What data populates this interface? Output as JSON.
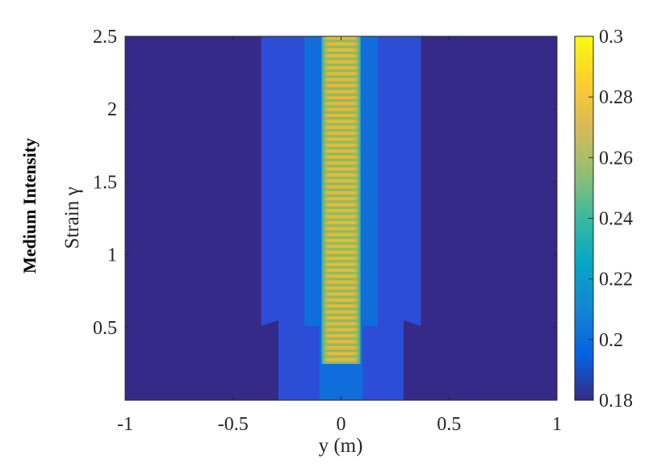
{
  "row_label": "Medium Intensity",
  "chart_data": {
    "type": "heatmap",
    "xlabel": "y (m)",
    "ylabel": "Strain γ",
    "xlim": [
      -1,
      1
    ],
    "ylim": [
      0,
      2.5
    ],
    "x_ticks": [
      "-1",
      "-0.5",
      "0",
      "0.5",
      "1"
    ],
    "y_ticks": [
      "0.5",
      "1",
      "1.5",
      "2",
      "2.5"
    ],
    "colorbar": {
      "range": [
        0.18,
        0.3
      ],
      "ticks": [
        "0.18",
        "0.2",
        "0.22",
        "0.24",
        "0.26",
        "0.28",
        "0.3"
      ],
      "colormap": "parula"
    },
    "regions": [
      {
        "name": "background",
        "value": 0.18,
        "y_from": 0,
        "y_to": 2.5,
        "x_from": -1,
        "x_to": 1
      },
      {
        "name": "outer band lower",
        "value": 0.19,
        "y_from": 0,
        "y_to": 0.55,
        "x_from": -0.29,
        "x_to": 0.29
      },
      {
        "name": "outer band upper",
        "value": 0.19,
        "y_from": 0.51,
        "y_to": 2.5,
        "x_from": -0.37,
        "x_to": 0.37
      },
      {
        "name": "inner band lower",
        "value": 0.2,
        "y_from": 0,
        "y_to": 0.51,
        "x_from": -0.1,
        "x_to": 0.1
      },
      {
        "name": "inner band upper",
        "value": 0.205,
        "y_from": 0.51,
        "y_to": 2.5,
        "x_from": -0.17,
        "x_to": 0.17
      },
      {
        "name": "core oscillating shear band",
        "value_min": 0.25,
        "value_max": 0.29,
        "y_from": 0.25,
        "y_to": 2.5,
        "x_from": -0.09,
        "x_to": 0.09
      }
    ]
  },
  "colors": {
    "background": "#352a87",
    "outer_band": "#2d4dd6",
    "inner_band": "#0f6edc",
    "core_edge": "#23b2a8",
    "core_stripe_a": "#e6b93c",
    "core_stripe_b": "#8cbc5e"
  }
}
